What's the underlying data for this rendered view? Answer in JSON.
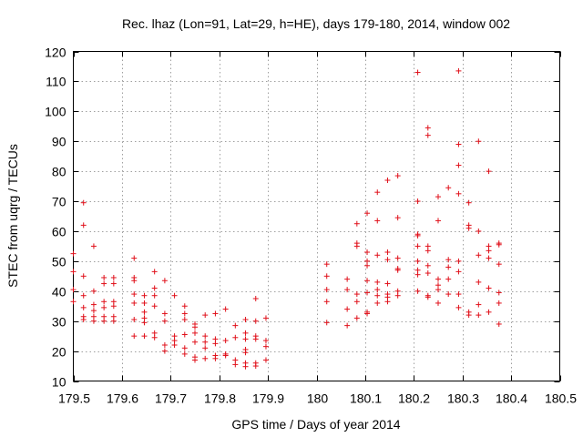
{
  "chart_data": {
    "type": "scatter",
    "title": "Rec. lhaz (Lon=91, Lat=29, h=HE), days 179-180, 2014, window 002",
    "xlabel": "GPS time / Days of year 2014",
    "ylabel": "STEC from uqrg / TECUs",
    "xlim": [
      179.5,
      180.5
    ],
    "ylim": [
      10,
      120
    ],
    "x_ticks": [
      179.5,
      179.6,
      179.7,
      179.8,
      179.9,
      180,
      180.1,
      180.2,
      180.3,
      180.4,
      180.5
    ],
    "x_tick_labels": [
      "179.5",
      "179.6",
      "179.7",
      "179.8",
      "179.9",
      "180",
      "180.1",
      "180.2",
      "180.3",
      "180.4",
      "180.5"
    ],
    "y_ticks": [
      10,
      20,
      30,
      40,
      50,
      60,
      70,
      80,
      90,
      100,
      110,
      120
    ],
    "y_tick_labels": [
      "10",
      "20",
      "30",
      "40",
      "50",
      "60",
      "70",
      "80",
      "90",
      "100",
      "110",
      "120"
    ],
    "grid": true,
    "marker": "+",
    "color": "#e0101a",
    "series": [
      {
        "points": [
          [
            179.5,
            52.5
          ],
          [
            179.5,
            46.5
          ],
          [
            179.5,
            40.5
          ],
          [
            179.5,
            36.5
          ],
          [
            179.521,
            69.5
          ],
          [
            179.521,
            62.0
          ],
          [
            179.521,
            45.0
          ],
          [
            179.521,
            38.5
          ],
          [
            179.521,
            34.5
          ],
          [
            179.521,
            31.5
          ],
          [
            179.521,
            30.5
          ],
          [
            179.542,
            55.0
          ],
          [
            179.542,
            40.0
          ],
          [
            179.542,
            35.5
          ],
          [
            179.542,
            33.5
          ],
          [
            179.542,
            31.5
          ],
          [
            179.542,
            30.0
          ],
          [
            179.563,
            44.5
          ],
          [
            179.563,
            42.5
          ],
          [
            179.563,
            36.5
          ],
          [
            179.563,
            34.5
          ],
          [
            179.563,
            31.5
          ],
          [
            179.563,
            30.0
          ],
          [
            179.583,
            44.5
          ],
          [
            179.583,
            42.5
          ],
          [
            179.583,
            36.5
          ],
          [
            179.583,
            35.0
          ],
          [
            179.583,
            31.5
          ],
          [
            179.583,
            30.0
          ],
          [
            179.625,
            51.0
          ],
          [
            179.625,
            44.5
          ],
          [
            179.625,
            43.5
          ],
          [
            179.625,
            39.0
          ],
          [
            179.625,
            36.0
          ],
          [
            179.625,
            30.5
          ],
          [
            179.625,
            25.0
          ],
          [
            179.646,
            38.5
          ],
          [
            179.646,
            36.0
          ],
          [
            179.646,
            33.0
          ],
          [
            179.646,
            31.0
          ],
          [
            179.646,
            29.5
          ],
          [
            179.646,
            25.0
          ],
          [
            179.667,
            46.5
          ],
          [
            179.667,
            41.0
          ],
          [
            179.667,
            38.5
          ],
          [
            179.667,
            35.0
          ],
          [
            179.667,
            26.0
          ],
          [
            179.667,
            24.5
          ],
          [
            179.688,
            43.5
          ],
          [
            179.688,
            32.5
          ],
          [
            179.688,
            30.0
          ],
          [
            179.688,
            22.0
          ],
          [
            179.688,
            20.0
          ],
          [
            179.708,
            38.5
          ],
          [
            179.708,
            25.0
          ],
          [
            179.708,
            23.5
          ],
          [
            179.708,
            22.0
          ],
          [
            179.729,
            35.0
          ],
          [
            179.729,
            32.5
          ],
          [
            179.729,
            30.5
          ],
          [
            179.729,
            25.5
          ],
          [
            179.729,
            21.0
          ],
          [
            179.729,
            19.0
          ],
          [
            179.75,
            29.0
          ],
          [
            179.75,
            28.0
          ],
          [
            179.75,
            26.0
          ],
          [
            179.75,
            23.0
          ],
          [
            179.75,
            18.0
          ],
          [
            179.75,
            17.0
          ],
          [
            179.771,
            32.0
          ],
          [
            179.771,
            25.0
          ],
          [
            179.771,
            23.0
          ],
          [
            179.771,
            21.0
          ],
          [
            179.771,
            17.5
          ],
          [
            179.792,
            32.5
          ],
          [
            179.792,
            24.0
          ],
          [
            179.792,
            22.5
          ],
          [
            179.792,
            18.5
          ],
          [
            179.792,
            17.5
          ],
          [
            179.813,
            34.0
          ],
          [
            179.813,
            23.5
          ],
          [
            179.813,
            19.0
          ],
          [
            179.813,
            18.5
          ],
          [
            179.833,
            28.5
          ],
          [
            179.833,
            24.5
          ],
          [
            179.833,
            17.0
          ],
          [
            179.833,
            15.5
          ],
          [
            179.854,
            30.5
          ],
          [
            179.854,
            26.0
          ],
          [
            179.854,
            24.0
          ],
          [
            179.854,
            20.5
          ],
          [
            179.854,
            19.5
          ],
          [
            179.854,
            16.0
          ],
          [
            179.854,
            14.8
          ],
          [
            179.875,
            37.5
          ],
          [
            179.875,
            30.0
          ],
          [
            179.875,
            25.0
          ],
          [
            179.875,
            24.0
          ],
          [
            179.875,
            16.0
          ],
          [
            179.875,
            15.0
          ],
          [
            179.896,
            31.0
          ],
          [
            179.896,
            23.5
          ],
          [
            179.896,
            21.5
          ],
          [
            179.896,
            17.0
          ],
          [
            180.021,
            49.0
          ],
          [
            180.021,
            45.0
          ],
          [
            180.021,
            40.5
          ],
          [
            180.021,
            36.5
          ],
          [
            180.021,
            29.5
          ],
          [
            180.063,
            44.0
          ],
          [
            180.063,
            40.5
          ],
          [
            180.063,
            34.0
          ],
          [
            180.063,
            28.5
          ],
          [
            180.083,
            62.5
          ],
          [
            180.083,
            56.0
          ],
          [
            180.083,
            55.0
          ],
          [
            180.083,
            39.0
          ],
          [
            180.083,
            36.5
          ],
          [
            180.083,
            31.0
          ],
          [
            180.104,
            66.0
          ],
          [
            180.104,
            53.0
          ],
          [
            180.104,
            50.0
          ],
          [
            180.104,
            48.5
          ],
          [
            180.104,
            43.5
          ],
          [
            180.104,
            39.5
          ],
          [
            180.104,
            33.0
          ],
          [
            180.104,
            32.5
          ],
          [
            180.125,
            73.0
          ],
          [
            180.125,
            63.5
          ],
          [
            180.125,
            52.0
          ],
          [
            180.125,
            43.0
          ],
          [
            180.125,
            40.5
          ],
          [
            180.125,
            38.5
          ],
          [
            180.125,
            36.0
          ],
          [
            180.146,
            77.0
          ],
          [
            180.146,
            53.0
          ],
          [
            180.146,
            50.5
          ],
          [
            180.146,
            42.5
          ],
          [
            180.146,
            39.0
          ],
          [
            180.146,
            38.0
          ],
          [
            180.146,
            36.5
          ],
          [
            180.167,
            78.5
          ],
          [
            180.167,
            64.5
          ],
          [
            180.167,
            51.0
          ],
          [
            180.167,
            47.5
          ],
          [
            180.167,
            47.0
          ],
          [
            180.167,
            40.0
          ],
          [
            180.167,
            38.5
          ],
          [
            180.208,
            113.0
          ],
          [
            180.208,
            70.0
          ],
          [
            180.208,
            59.0
          ],
          [
            180.208,
            58.5
          ],
          [
            180.208,
            55.0
          ],
          [
            180.208,
            50.0
          ],
          [
            180.208,
            47.0
          ],
          [
            180.208,
            45.5
          ],
          [
            180.208,
            40.0
          ],
          [
            180.229,
            94.5
          ],
          [
            180.229,
            92.0
          ],
          [
            180.229,
            55.0
          ],
          [
            180.229,
            53.5
          ],
          [
            180.229,
            48.5
          ],
          [
            180.229,
            46.0
          ],
          [
            180.229,
            38.5
          ],
          [
            180.229,
            38.0
          ],
          [
            180.25,
            71.5
          ],
          [
            180.25,
            63.5
          ],
          [
            180.25,
            44.0
          ],
          [
            180.25,
            42.0
          ],
          [
            180.25,
            40.5
          ],
          [
            180.25,
            36.0
          ],
          [
            180.271,
            74.5
          ],
          [
            180.271,
            50.5
          ],
          [
            180.271,
            48.0
          ],
          [
            180.271,
            44.0
          ],
          [
            180.271,
            39.0
          ],
          [
            180.292,
            113.5
          ],
          [
            180.292,
            89.0
          ],
          [
            180.292,
            82.0
          ],
          [
            180.292,
            72.5
          ],
          [
            180.292,
            50.0
          ],
          [
            180.292,
            46.5
          ],
          [
            180.292,
            39.0
          ],
          [
            180.292,
            34.5
          ],
          [
            180.313,
            69.5
          ],
          [
            180.313,
            62.0
          ],
          [
            180.313,
            61.0
          ],
          [
            180.313,
            33.0
          ],
          [
            180.313,
            32.0
          ],
          [
            180.333,
            90.0
          ],
          [
            180.333,
            60.0
          ],
          [
            180.333,
            52.0
          ],
          [
            180.333,
            43.0
          ],
          [
            180.333,
            35.5
          ],
          [
            180.333,
            32.0
          ],
          [
            180.354,
            80.0
          ],
          [
            180.354,
            55.0
          ],
          [
            180.354,
            53.5
          ],
          [
            180.354,
            51.0
          ],
          [
            180.354,
            41.0
          ],
          [
            180.354,
            33.0
          ],
          [
            180.375,
            56.0
          ],
          [
            180.375,
            55.5
          ],
          [
            180.375,
            49.0
          ],
          [
            180.375,
            39.5
          ],
          [
            180.375,
            36.0
          ],
          [
            180.375,
            29.0
          ]
        ]
      }
    ]
  }
}
